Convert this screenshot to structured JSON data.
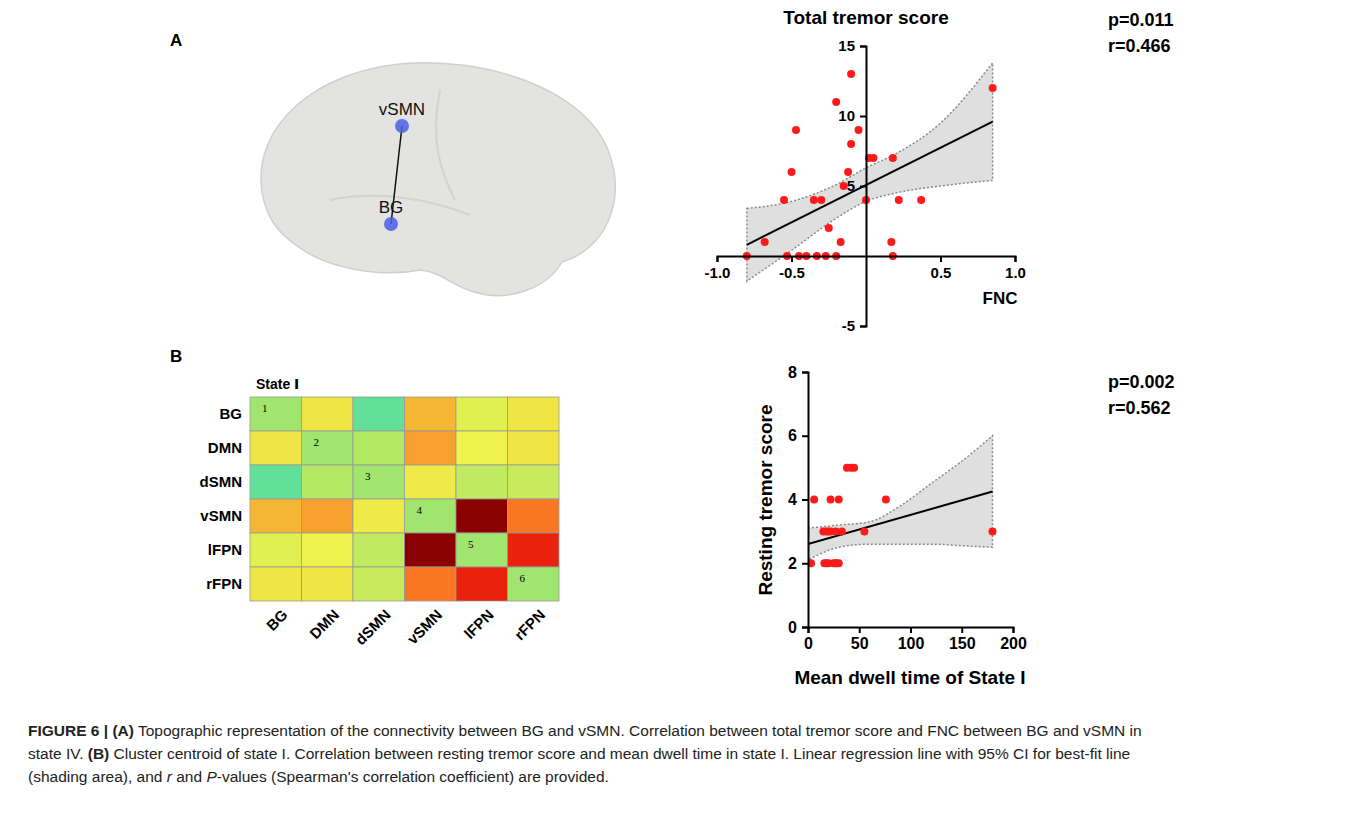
{
  "chart_data": [
    {
      "type": "scatter",
      "title": "Total tremor score",
      "xlabel": "FNC",
      "annotations": [
        "p=0.011",
        "r=0.466"
      ],
      "xlim": [
        -1,
        1
      ],
      "ylim": [
        -5,
        15
      ],
      "xticks": [
        {
          "value": -1,
          "label": "-1.0"
        },
        -0.5,
        0.5,
        {
          "value": 1,
          "label": "1.0"
        }
      ],
      "yticks": [
        -5,
        5,
        10,
        15
      ],
      "grid": false,
      "series": [
        {
          "type": "scatter",
          "marker": "circle",
          "color": "#ff1a1a",
          "x": [
            -0.8,
            -0.68,
            -0.55,
            -0.53,
            -0.5,
            -0.47,
            -0.45,
            -0.4,
            -0.35,
            -0.33,
            -0.3,
            -0.27,
            -0.25,
            -0.2,
            -0.2,
            -0.17,
            -0.15,
            -0.12,
            -0.1,
            -0.1,
            -0.05,
            0.0,
            0.02,
            0.05,
            0.17,
            0.18,
            0.18,
            0.22,
            0.37,
            0.85
          ],
          "values": [
            0,
            1,
            4,
            0,
            6,
            9,
            0,
            0,
            4,
            0,
            4,
            0,
            2,
            11,
            0,
            1,
            5,
            6,
            13,
            8,
            9,
            4,
            7,
            7,
            1,
            0,
            7,
            4,
            4,
            12
          ]
        },
        {
          "type": "line",
          "line_style": "solid",
          "color": "#000000",
          "x": [
            -0.8,
            0.85
          ],
          "values": [
            0.8,
            9.6
          ]
        },
        {
          "type": "area",
          "line_style": "dotted",
          "color": "#d9d9d9",
          "x": [
            -0.8,
            -0.5,
            -0.2,
            0,
            0.2,
            0.5,
            0.85
          ],
          "upper": [
            3.4,
            3.9,
            5.1,
            6.3,
            7.3,
            9.5,
            13.8
          ],
          "lower": [
            -1.8,
            0.4,
            2.7,
            3.9,
            4.5,
            5.0,
            5.4
          ]
        }
      ]
    },
    {
      "type": "heatmap",
      "title": "State Ⅰ",
      "categories": [
        "BG",
        "DMN",
        "dSMN",
        "vSMN",
        "lFPN",
        "rFPN"
      ],
      "values": [
        [
          0,
          0.15,
          -0.15,
          0.27,
          0.1,
          0.15
        ],
        [
          0.15,
          0,
          0.03,
          0.3,
          0.12,
          0.15
        ],
        [
          -0.15,
          0.03,
          0,
          0.14,
          0.05,
          0.06
        ],
        [
          0.27,
          0.3,
          0.14,
          0,
          0.6,
          0.35
        ],
        [
          0.1,
          0.12,
          0.05,
          0.6,
          0,
          0.47
        ],
        [
          0.15,
          0.15,
          0.06,
          0.35,
          0.47,
          0
        ]
      ],
      "zlim": [
        -0.2,
        0.6
      ],
      "diagonal_labels": [
        1,
        2,
        3,
        4,
        5,
        6
      ]
    },
    {
      "type": "scatter",
      "xlabel": "Mean dwell time of State I",
      "ylabel": "Resting tremor score",
      "annotations": [
        "p=0.002",
        "r=0.562"
      ],
      "xlim": [
        0,
        200
      ],
      "ylim": [
        0,
        8
      ],
      "xticks": [
        0,
        50,
        100,
        150,
        200
      ],
      "yticks": [
        0,
        2,
        4,
        6,
        8
      ],
      "grid": false,
      "series": [
        {
          "type": "scatter",
          "marker": "circle",
          "color": "#ff1a1a",
          "x": [
            1,
            3,
            6,
            15,
            16,
            18,
            18,
            20,
            20,
            22,
            22,
            25,
            27,
            27,
            28,
            30,
            30,
            33,
            38,
            42,
            45,
            55,
            76,
            180
          ],
          "values": [
            2,
            2,
            4,
            3,
            2,
            2,
            3,
            2,
            3,
            4,
            3,
            2,
            3,
            2,
            2,
            4,
            2,
            3,
            5,
            5,
            5,
            3,
            4,
            3
          ]
        },
        {
          "type": "line",
          "line_style": "solid",
          "color": "#000000",
          "x": [
            0,
            180
          ],
          "values": [
            2.6,
            4.25
          ]
        },
        {
          "type": "area",
          "line_style": "dotted",
          "color": "#d9d9d9",
          "x": [
            0,
            30,
            60,
            90,
            120,
            150,
            180
          ],
          "upper": [
            3.1,
            3.2,
            3.3,
            3.8,
            4.5,
            5.2,
            6.0
          ],
          "lower": [
            2.1,
            2.5,
            2.6,
            2.6,
            2.6,
            2.55,
            2.5
          ]
        }
      ]
    }
  ],
  "panels": [
    "A",
    "B"
  ],
  "diagram": {
    "nodes": [
      {
        "label": "vSMN"
      },
      {
        "label": "BG"
      }
    ]
  },
  "caption": [
    [
      {
        "text": "FIGURE 6 | (A)",
        "style": "bold"
      },
      {
        "text": " Topographic representation of the connectivity between BG and vSMN. Correlation between total tremor score and FNC between BG and vSMN in",
        "style": "normal"
      }
    ],
    [
      {
        "text": "state IV. ",
        "style": "normal"
      },
      {
        "text": "(B)",
        "style": "bold"
      },
      {
        "text": " Cluster centroid of state I. Correlation between resting tremor score and mean dwell time in state I. Linear regression line with 95% CI for best-fit line",
        "style": "normal"
      }
    ],
    [
      {
        "text": "(shading area), and ",
        "style": "normal"
      },
      {
        "text": "r",
        "style": "italic"
      },
      {
        "text": " and ",
        "style": "normal"
      },
      {
        "text": "P",
        "style": "italic"
      },
      {
        "text": "-values (Spearman's correlation coefficient) are provided.",
        "style": "normal"
      }
    ]
  ]
}
